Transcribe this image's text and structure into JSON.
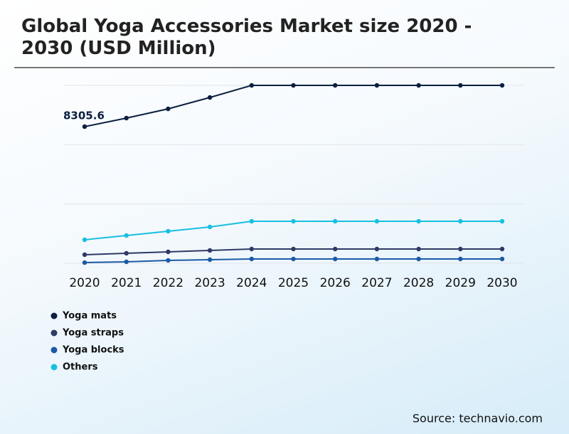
{
  "chart_data": {
    "type": "line",
    "title": "Global Yoga Accessories Market size 2020 - 2030 (USD Million)",
    "categories": [
      "2020",
      "2021",
      "2022",
      "2023",
      "2024",
      "2025",
      "2026",
      "2027",
      "2028",
      "2029",
      "2030"
    ],
    "series": [
      {
        "name": "Yoga mats",
        "color": "#0b1f3f",
        "values": [
          8305.6,
          8825,
          9387,
          10080,
          10815,
          10815,
          10815,
          10815,
          10815,
          10815,
          10815
        ]
      },
      {
        "name": "Yoga straps",
        "color": "#2e3a66",
        "values": [
          519,
          606,
          692,
          779,
          865,
          865,
          865,
          865,
          865,
          865,
          865
        ]
      },
      {
        "name": "Yoga blocks",
        "color": "#1b5aa6",
        "values": [
          40,
          87,
          173,
          216,
          260,
          260,
          260,
          260,
          260,
          260,
          260
        ]
      },
      {
        "name": "Others",
        "color": "#17c0e0",
        "values": [
          1428,
          1687,
          1947,
          2206,
          2552,
          2552,
          2552,
          2552,
          2552,
          2552,
          2552
        ]
      }
    ],
    "ylim": [
      0,
      10815
    ],
    "yticks": [
      0,
      3605,
      7210,
      10815
    ],
    "grid": true,
    "source": "Source: technavio.com"
  }
}
